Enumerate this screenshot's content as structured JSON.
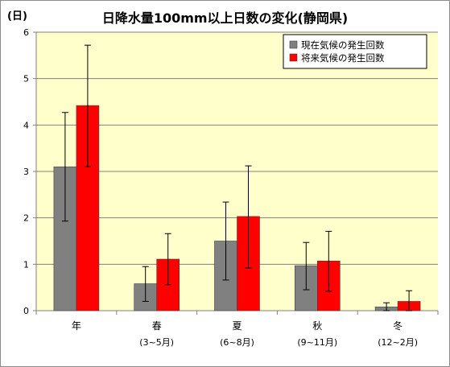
{
  "chart_data": {
    "type": "bar",
    "title": "日降水量100mm以上日数の変化(静岡県)",
    "ylabel": "(日)",
    "ylim": [
      0,
      6
    ],
    "yticks": [
      0,
      1,
      2,
      3,
      4,
      5,
      6
    ],
    "categories": [
      "年",
      "春",
      "夏",
      "秋",
      "冬"
    ],
    "category_sublabels": [
      "",
      "(3~5月)",
      "(6~8月)",
      "(9~11月)",
      "(12~2月)"
    ],
    "series": [
      {
        "name": "現在気候の発生回数",
        "color": "#808080",
        "values": [
          3.1,
          0.58,
          1.5,
          0.97,
          0.08
        ],
        "error_low": [
          1.93,
          0.2,
          0.66,
          0.45,
          0.0
        ],
        "error_high": [
          4.27,
          0.95,
          2.34,
          1.47,
          0.17
        ]
      },
      {
        "name": "将来気候の発生回数",
        "color": "#ff0000",
        "values": [
          4.42,
          1.11,
          2.03,
          1.07,
          0.2
        ],
        "error_low": [
          3.1,
          0.56,
          0.92,
          0.42,
          0.0
        ],
        "error_high": [
          5.72,
          1.66,
          3.12,
          1.71,
          0.43
        ]
      }
    ],
    "plot_background": "#ffffcc",
    "grid": true,
    "legend_position": "top-right"
  }
}
